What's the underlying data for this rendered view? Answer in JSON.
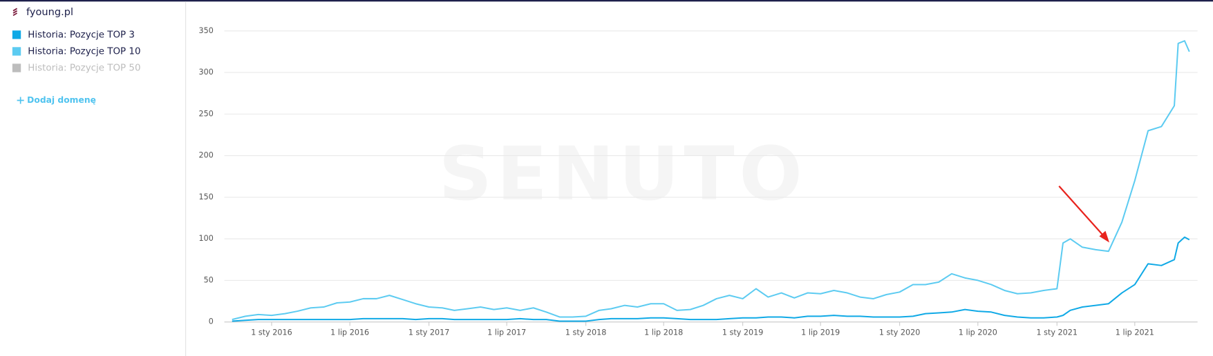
{
  "sidebar": {
    "domain": "fyoung.pl",
    "add_link": "Dodaj domenę",
    "watermark": "SENUTO"
  },
  "chart_data": {
    "type": "line",
    "x": [
      "2015-10-01",
      "2015-11-01",
      "2015-12-01",
      "2016-01-01",
      "2016-02-01",
      "2016-03-01",
      "2016-04-01",
      "2016-05-01",
      "2016-06-01",
      "2016-07-01",
      "2016-08-01",
      "2016-09-01",
      "2016-10-01",
      "2016-11-01",
      "2016-12-01",
      "2017-01-01",
      "2017-02-01",
      "2017-03-01",
      "2017-04-01",
      "2017-05-01",
      "2017-06-01",
      "2017-07-01",
      "2017-08-01",
      "2017-09-01",
      "2017-10-01",
      "2017-11-01",
      "2017-12-01",
      "2018-01-01",
      "2018-02-01",
      "2018-03-01",
      "2018-04-01",
      "2018-05-01",
      "2018-06-01",
      "2018-07-01",
      "2018-08-01",
      "2018-09-01",
      "2018-10-01",
      "2018-11-01",
      "2018-12-01",
      "2019-01-01",
      "2019-02-01",
      "2019-03-01",
      "2019-04-01",
      "2019-05-01",
      "2019-06-01",
      "2019-07-01",
      "2019-08-01",
      "2019-09-01",
      "2019-10-01",
      "2019-11-01",
      "2019-12-01",
      "2020-01-01",
      "2020-02-01",
      "2020-03-01",
      "2020-04-01",
      "2020-05-01",
      "2020-06-01",
      "2020-07-01",
      "2020-08-01",
      "2020-09-01",
      "2020-10-01",
      "2020-11-01",
      "2020-12-01",
      "2021-01-01",
      "2021-01-15",
      "2021-02-01",
      "2021-03-01",
      "2021-04-01",
      "2021-05-01",
      "2021-06-01",
      "2021-07-01",
      "2021-08-01",
      "2021-09-01",
      "2021-10-01",
      "2021-10-10",
      "2021-10-25",
      "2021-11-05"
    ],
    "series": [
      {
        "name": "Historia: Pozycje TOP 3",
        "color": "#0fa9e6",
        "values": [
          1,
          2,
          3,
          3,
          3,
          3,
          3,
          3,
          3,
          3,
          4,
          4,
          4,
          4,
          3,
          4,
          4,
          3,
          3,
          3,
          3,
          3,
          4,
          3,
          3,
          1,
          1,
          1,
          3,
          4,
          4,
          4,
          5,
          5,
          4,
          3,
          3,
          3,
          4,
          5,
          5,
          6,
          6,
          5,
          7,
          7,
          8,
          7,
          7,
          6,
          6,
          6,
          7,
          10,
          11,
          12,
          15,
          13,
          12,
          8,
          6,
          5,
          5,
          6,
          8,
          14,
          18,
          20,
          22,
          35,
          45,
          70,
          68,
          75,
          95,
          102,
          99
        ]
      },
      {
        "name": "Historia: Pozycje TOP 10",
        "color": "#5ccbf1",
        "values": [
          3,
          7,
          9,
          8,
          10,
          13,
          17,
          18,
          23,
          24,
          28,
          28,
          32,
          27,
          22,
          18,
          17,
          14,
          16,
          18,
          15,
          17,
          14,
          17,
          12,
          6,
          6,
          7,
          14,
          16,
          20,
          18,
          22,
          22,
          14,
          15,
          20,
          28,
          32,
          28,
          40,
          30,
          35,
          29,
          35,
          34,
          38,
          35,
          30,
          28,
          33,
          36,
          45,
          45,
          48,
          58,
          53,
          50,
          45,
          38,
          34,
          35,
          38,
          40,
          95,
          100,
          90,
          87,
          85,
          120,
          170,
          230,
          235,
          260,
          335,
          338,
          325
        ]
      },
      {
        "name": "Historia: Pozycje TOP 50",
        "color": "#bdbdbd",
        "hidden": true
      }
    ],
    "xlim": [
      "2015-09-13",
      "2021-11-24"
    ],
    "xticks": [
      {
        "value": "2016-01-01",
        "label": "1 sty 2016"
      },
      {
        "value": "2016-07-01",
        "label": "1 lip 2016"
      },
      {
        "value": "2017-01-01",
        "label": "1 sty 2017"
      },
      {
        "value": "2017-07-01",
        "label": "1 lip 2017"
      },
      {
        "value": "2018-01-01",
        "label": "1 sty 2018"
      },
      {
        "value": "2018-07-01",
        "label": "1 lip 2018"
      },
      {
        "value": "2019-01-01",
        "label": "1 sty 2019"
      },
      {
        "value": "2019-07-01",
        "label": "1 lip 2019"
      },
      {
        "value": "2020-01-01",
        "label": "1 sty 2020"
      },
      {
        "value": "2020-07-01",
        "label": "1 lip 2020"
      },
      {
        "value": "2021-01-01",
        "label": "1 sty 2021"
      },
      {
        "value": "2021-07-01",
        "label": "1 lip 2021"
      }
    ],
    "ylim": [
      0,
      350
    ],
    "yticks": [
      0,
      50,
      100,
      150,
      200,
      250,
      300,
      350
    ],
    "grid": true
  }
}
